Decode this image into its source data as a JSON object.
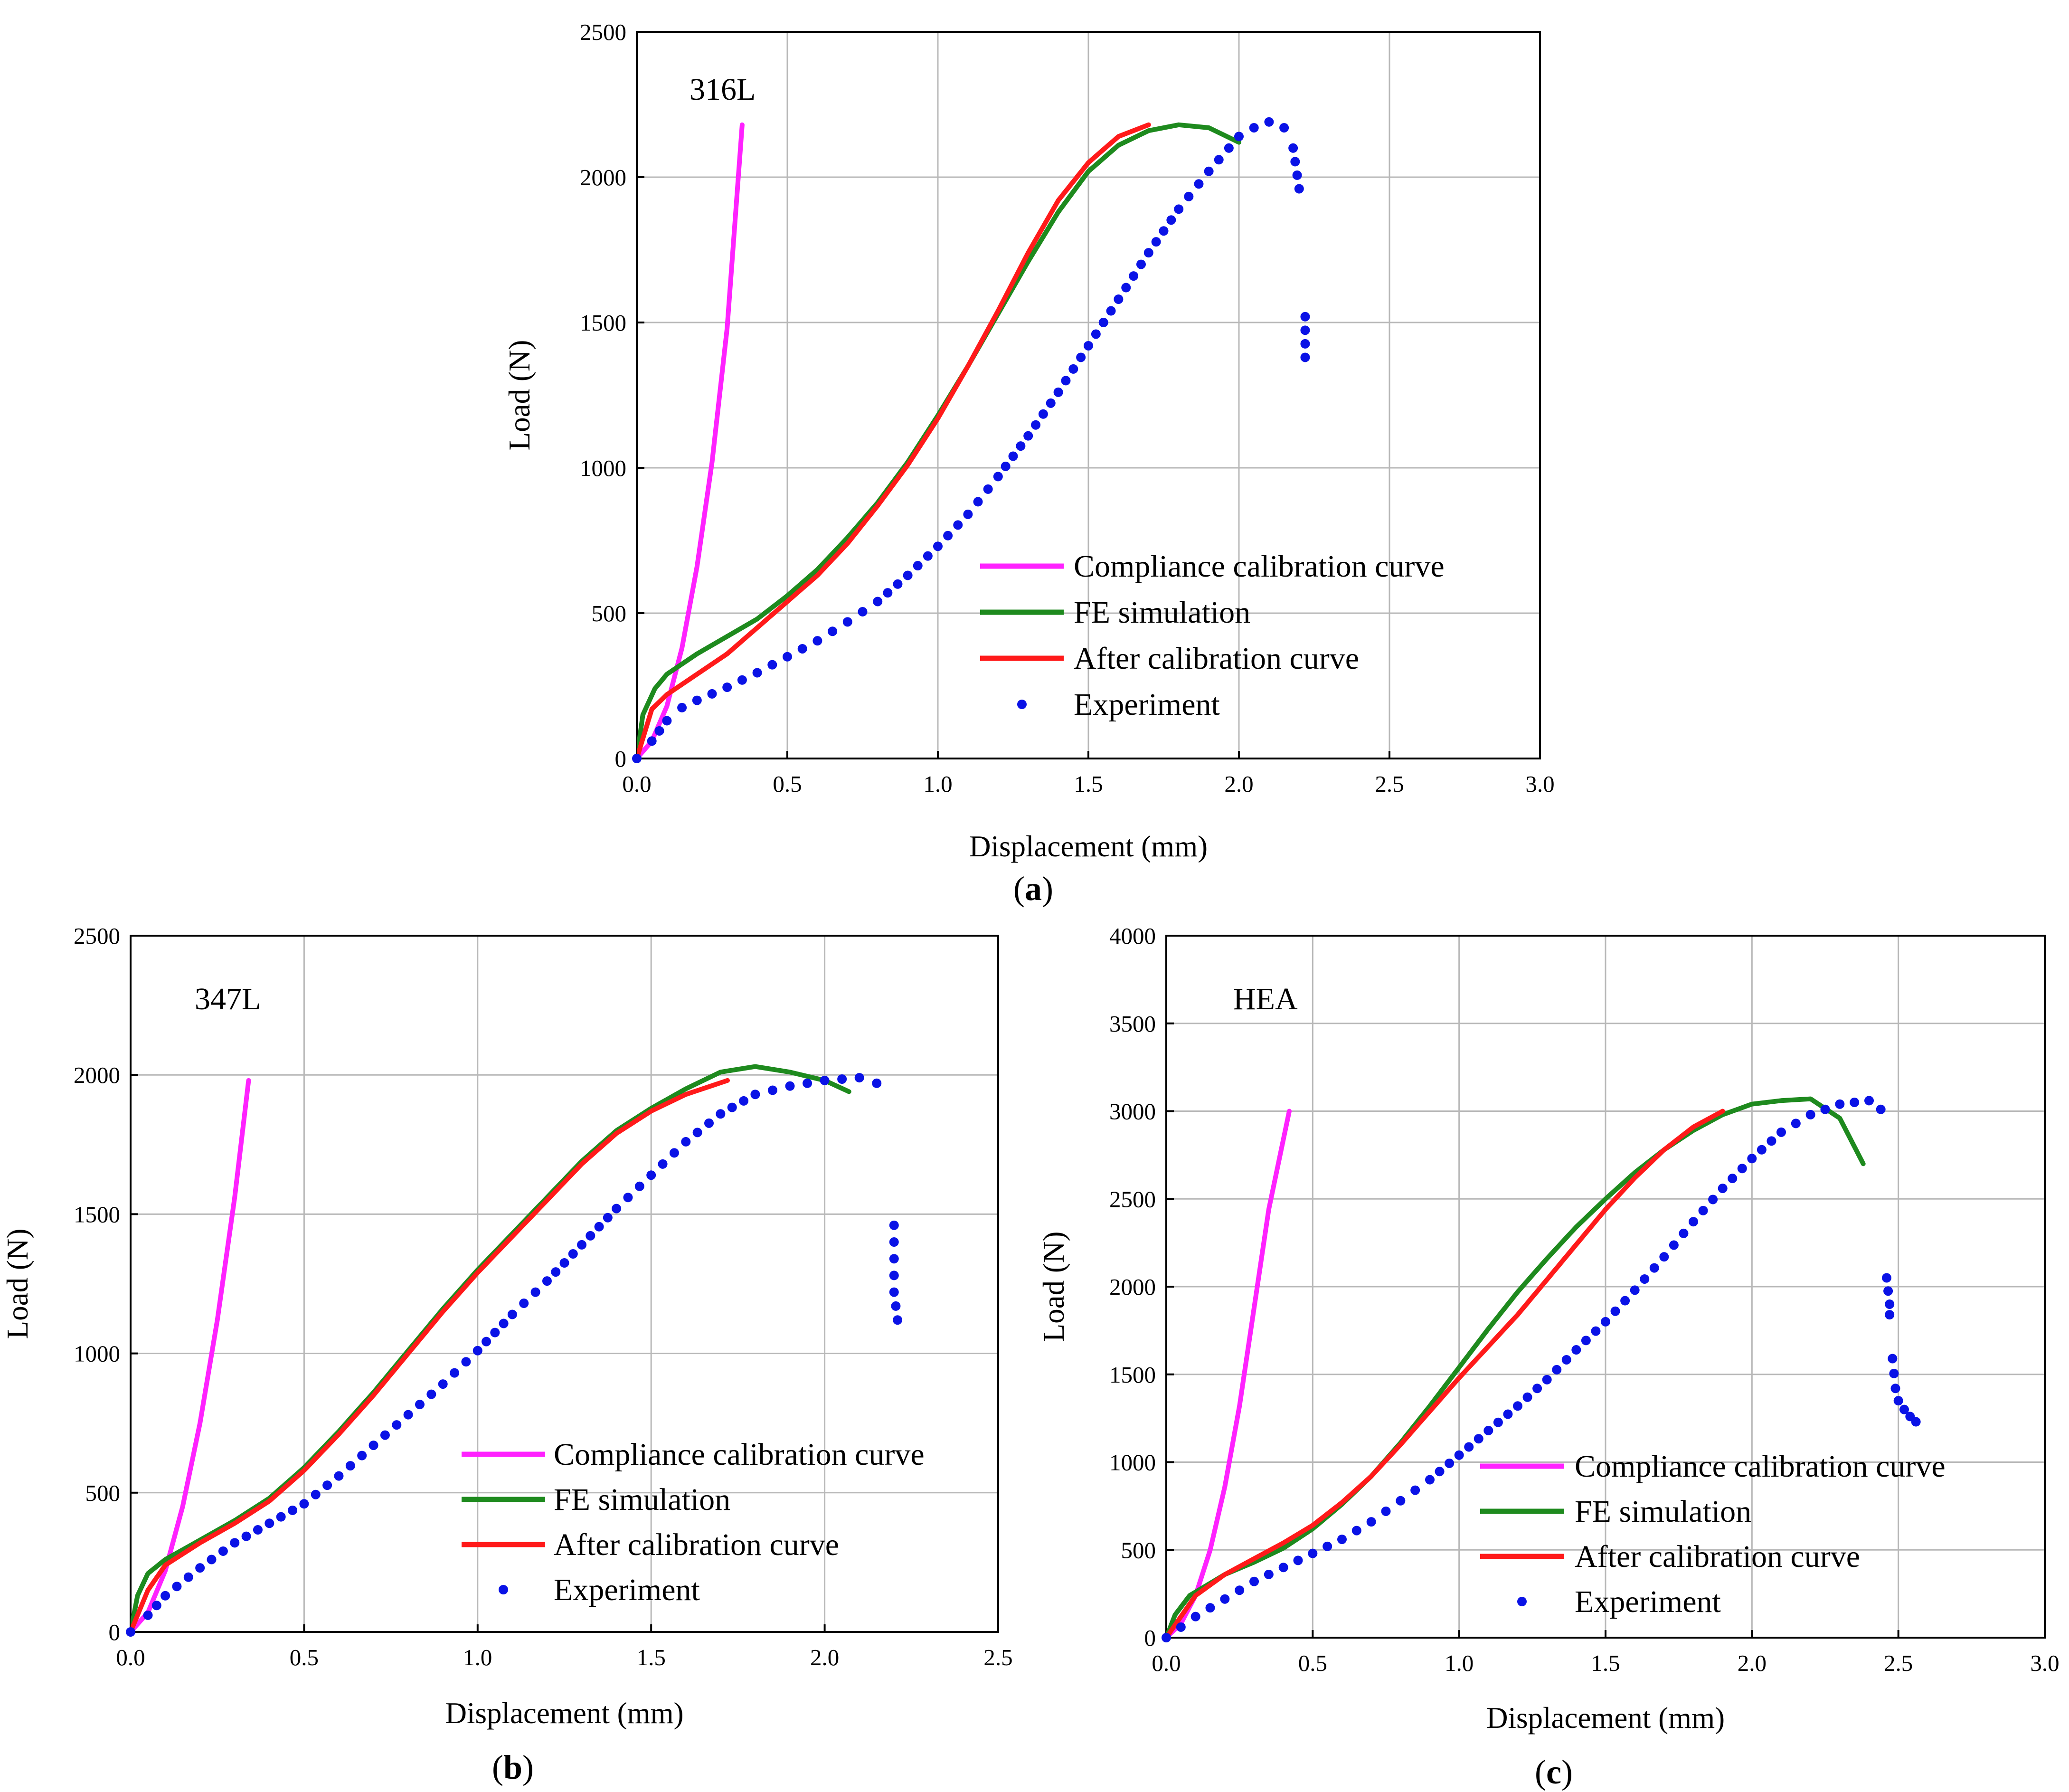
{
  "colors": {
    "compliance": "#ff22ff",
    "fe": "#1e8a1e",
    "after": "#ff1a1a",
    "experiment": "#0a12e6",
    "grid": "#b8b8b8",
    "frame": "#000000"
  },
  "legend_labels": {
    "compliance": "Compliance calibration curve",
    "fe": "FE simulation",
    "after": "After calibration curve",
    "experiment": "Experiment"
  },
  "chart_data": [
    {
      "id": "a",
      "type": "line",
      "caption_label": "a",
      "material": "316L",
      "xlabel": "Displacement (mm)",
      "ylabel": "Load (N)",
      "xlim": [
        0,
        3.0
      ],
      "ylim": [
        0,
        2500
      ],
      "xticks": [
        "0.0",
        "0.5",
        "1.0",
        "1.5",
        "2.0",
        "2.5",
        "3.0"
      ],
      "yticks": [
        "0",
        "500",
        "1000",
        "1500",
        "2000",
        "2500"
      ],
      "grid": true,
      "legend_position": "bottom-right",
      "series": {
        "compliance": [
          [
            0,
            0
          ],
          [
            0.05,
            60
          ],
          [
            0.1,
            180
          ],
          [
            0.15,
            380
          ],
          [
            0.2,
            660
          ],
          [
            0.25,
            1020
          ],
          [
            0.3,
            1480
          ],
          [
            0.35,
            2180
          ]
        ],
        "fe": [
          [
            0,
            0
          ],
          [
            0.02,
            150
          ],
          [
            0.06,
            240
          ],
          [
            0.1,
            290
          ],
          [
            0.2,
            360
          ],
          [
            0.3,
            420
          ],
          [
            0.4,
            480
          ],
          [
            0.5,
            560
          ],
          [
            0.6,
            650
          ],
          [
            0.7,
            760
          ],
          [
            0.8,
            880
          ],
          [
            0.9,
            1020
          ],
          [
            1.0,
            1180
          ],
          [
            1.1,
            1350
          ],
          [
            1.2,
            1530
          ],
          [
            1.3,
            1710
          ],
          [
            1.4,
            1880
          ],
          [
            1.5,
            2020
          ],
          [
            1.6,
            2110
          ],
          [
            1.7,
            2160
          ],
          [
            1.8,
            2180
          ],
          [
            1.9,
            2170
          ],
          [
            2.0,
            2120
          ]
        ],
        "after": [
          [
            0,
            0
          ],
          [
            0.05,
            170
          ],
          [
            0.1,
            220
          ],
          [
            0.2,
            290
          ],
          [
            0.3,
            360
          ],
          [
            0.4,
            450
          ],
          [
            0.5,
            540
          ],
          [
            0.6,
            630
          ],
          [
            0.7,
            740
          ],
          [
            0.8,
            870
          ],
          [
            0.9,
            1010
          ],
          [
            1.0,
            1170
          ],
          [
            1.1,
            1350
          ],
          [
            1.2,
            1540
          ],
          [
            1.3,
            1740
          ],
          [
            1.4,
            1920
          ],
          [
            1.5,
            2050
          ],
          [
            1.6,
            2140
          ],
          [
            1.7,
            2180
          ]
        ],
        "experiment": [
          [
            0,
            0
          ],
          [
            0.05,
            60
          ],
          [
            0.1,
            130
          ],
          [
            0.15,
            175
          ],
          [
            0.2,
            200
          ],
          [
            0.3,
            245
          ],
          [
            0.4,
            295
          ],
          [
            0.5,
            350
          ],
          [
            0.6,
            405
          ],
          [
            0.7,
            470
          ],
          [
            0.8,
            540
          ],
          [
            0.9,
            630
          ],
          [
            1.0,
            730
          ],
          [
            1.1,
            840
          ],
          [
            1.2,
            970
          ],
          [
            1.3,
            1110
          ],
          [
            1.4,
            1260
          ],
          [
            1.5,
            1420
          ],
          [
            1.6,
            1580
          ],
          [
            1.7,
            1740
          ],
          [
            1.8,
            1890
          ],
          [
            1.9,
            2020
          ],
          [
            2.0,
            2140
          ],
          [
            2.05,
            2170
          ],
          [
            2.1,
            2190
          ],
          [
            2.15,
            2170
          ],
          [
            2.18,
            2100
          ],
          [
            2.2,
            1960
          ],
          [
            2.22,
            1520
          ],
          [
            2.22,
            1380
          ]
        ]
      }
    },
    {
      "id": "b",
      "type": "line",
      "caption_label": "b",
      "material": "347L",
      "xlabel": "Displacement (mm)",
      "ylabel": "Load (N)",
      "xlim": [
        0,
        2.5
      ],
      "ylim": [
        0,
        2500
      ],
      "xticks": [
        "0.0",
        "0.5",
        "1.0",
        "1.5",
        "2.0",
        "2.5"
      ],
      "yticks": [
        "0",
        "500",
        "1000",
        "1500",
        "2000",
        "2500"
      ],
      "grid": true,
      "legend_position": "bottom-right",
      "series": {
        "compliance": [
          [
            0,
            0
          ],
          [
            0.05,
            70
          ],
          [
            0.1,
            220
          ],
          [
            0.15,
            450
          ],
          [
            0.2,
            750
          ],
          [
            0.25,
            1120
          ],
          [
            0.3,
            1560
          ],
          [
            0.34,
            1980
          ]
        ],
        "fe": [
          [
            0,
            0
          ],
          [
            0.02,
            130
          ],
          [
            0.05,
            210
          ],
          [
            0.1,
            260
          ],
          [
            0.2,
            330
          ],
          [
            0.3,
            400
          ],
          [
            0.4,
            480
          ],
          [
            0.5,
            590
          ],
          [
            0.6,
            720
          ],
          [
            0.7,
            860
          ],
          [
            0.8,
            1010
          ],
          [
            0.9,
            1160
          ],
          [
            1.0,
            1300
          ],
          [
            1.1,
            1430
          ],
          [
            1.2,
            1560
          ],
          [
            1.3,
            1690
          ],
          [
            1.4,
            1800
          ],
          [
            1.5,
            1880
          ],
          [
            1.6,
            1950
          ],
          [
            1.7,
            2010
          ],
          [
            1.8,
            2030
          ],
          [
            1.9,
            2010
          ],
          [
            2.0,
            1980
          ],
          [
            2.07,
            1940
          ]
        ],
        "after": [
          [
            0,
            0
          ],
          [
            0.05,
            150
          ],
          [
            0.1,
            240
          ],
          [
            0.2,
            320
          ],
          [
            0.3,
            390
          ],
          [
            0.4,
            470
          ],
          [
            0.5,
            580
          ],
          [
            0.6,
            710
          ],
          [
            0.7,
            850
          ],
          [
            0.8,
            1000
          ],
          [
            0.9,
            1150
          ],
          [
            1.0,
            1290
          ],
          [
            1.1,
            1420
          ],
          [
            1.2,
            1550
          ],
          [
            1.3,
            1680
          ],
          [
            1.4,
            1790
          ],
          [
            1.5,
            1870
          ],
          [
            1.6,
            1930
          ],
          [
            1.72,
            1980
          ]
        ],
        "experiment": [
          [
            0,
            0
          ],
          [
            0.05,
            60
          ],
          [
            0.1,
            130
          ],
          [
            0.2,
            230
          ],
          [
            0.3,
            320
          ],
          [
            0.4,
            390
          ],
          [
            0.5,
            460
          ],
          [
            0.6,
            560
          ],
          [
            0.7,
            670
          ],
          [
            0.8,
            780
          ],
          [
            0.9,
            890
          ],
          [
            1.0,
            1010
          ],
          [
            1.1,
            1140
          ],
          [
            1.2,
            1260
          ],
          [
            1.3,
            1390
          ],
          [
            1.4,
            1520
          ],
          [
            1.5,
            1640
          ],
          [
            1.6,
            1760
          ],
          [
            1.7,
            1860
          ],
          [
            1.8,
            1930
          ],
          [
            1.9,
            1960
          ],
          [
            2.0,
            1980
          ],
          [
            2.1,
            1990
          ],
          [
            2.15,
            1970
          ],
          [
            2.2,
            1460
          ],
          [
            2.2,
            1340
          ],
          [
            2.2,
            1220
          ],
          [
            2.21,
            1120
          ]
        ]
      }
    },
    {
      "id": "c",
      "type": "line",
      "caption_label": "c",
      "material": "HEA",
      "xlabel": "Displacement (mm)",
      "ylabel": "Load (N)",
      "xlim": [
        0,
        3.0
      ],
      "ylim": [
        0,
        4000
      ],
      "xticks": [
        "0.0",
        "0.5",
        "1.0",
        "1.5",
        "2.0",
        "2.5",
        "3.0"
      ],
      "yticks": [
        "0",
        "500",
        "1000",
        "1500",
        "2000",
        "2500",
        "3000",
        "3500",
        "4000"
      ],
      "grid": true,
      "legend_position": "bottom-right",
      "series": {
        "compliance": [
          [
            0,
            0
          ],
          [
            0.05,
            80
          ],
          [
            0.1,
            240
          ],
          [
            0.15,
            500
          ],
          [
            0.2,
            860
          ],
          [
            0.25,
            1320
          ],
          [
            0.3,
            1880
          ],
          [
            0.35,
            2440
          ],
          [
            0.42,
            3000
          ]
        ],
        "fe": [
          [
            0,
            0
          ],
          [
            0.03,
            130
          ],
          [
            0.08,
            240
          ],
          [
            0.2,
            360
          ],
          [
            0.3,
            430
          ],
          [
            0.4,
            510
          ],
          [
            0.5,
            620
          ],
          [
            0.6,
            760
          ],
          [
            0.7,
            920
          ],
          [
            0.8,
            1110
          ],
          [
            0.9,
            1320
          ],
          [
            1.0,
            1540
          ],
          [
            1.1,
            1760
          ],
          [
            1.2,
            1970
          ],
          [
            1.3,
            2160
          ],
          [
            1.4,
            2340
          ],
          [
            1.5,
            2500
          ],
          [
            1.6,
            2650
          ],
          [
            1.7,
            2780
          ],
          [
            1.8,
            2890
          ],
          [
            1.9,
            2980
          ],
          [
            2.0,
            3040
          ],
          [
            2.1,
            3060
          ],
          [
            2.2,
            3070
          ],
          [
            2.3,
            2960
          ],
          [
            2.38,
            2700
          ]
        ],
        "after": [
          [
            0,
            0
          ],
          [
            0.05,
            120
          ],
          [
            0.1,
            240
          ],
          [
            0.2,
            360
          ],
          [
            0.3,
            450
          ],
          [
            0.4,
            540
          ],
          [
            0.5,
            640
          ],
          [
            0.6,
            770
          ],
          [
            0.7,
            920
          ],
          [
            0.8,
            1100
          ],
          [
            0.9,
            1290
          ],
          [
            1.0,
            1480
          ],
          [
            1.1,
            1660
          ],
          [
            1.2,
            1840
          ],
          [
            1.3,
            2040
          ],
          [
            1.4,
            2240
          ],
          [
            1.5,
            2440
          ],
          [
            1.6,
            2620
          ],
          [
            1.7,
            2780
          ],
          [
            1.8,
            2910
          ],
          [
            1.9,
            3000
          ]
        ],
        "experiment": [
          [
            0,
            0
          ],
          [
            0.05,
            60
          ],
          [
            0.1,
            120
          ],
          [
            0.2,
            220
          ],
          [
            0.3,
            320
          ],
          [
            0.4,
            400
          ],
          [
            0.5,
            480
          ],
          [
            0.6,
            560
          ],
          [
            0.7,
            660
          ],
          [
            0.8,
            780
          ],
          [
            0.9,
            900
          ],
          [
            1.0,
            1040
          ],
          [
            1.1,
            1180
          ],
          [
            1.2,
            1320
          ],
          [
            1.3,
            1470
          ],
          [
            1.4,
            1640
          ],
          [
            1.5,
            1800
          ],
          [
            1.6,
            1980
          ],
          [
            1.7,
            2170
          ],
          [
            1.8,
            2370
          ],
          [
            1.9,
            2560
          ],
          [
            2.0,
            2730
          ],
          [
            2.1,
            2880
          ],
          [
            2.2,
            2980
          ],
          [
            2.3,
            3040
          ],
          [
            2.4,
            3060
          ],
          [
            2.44,
            3010
          ],
          [
            2.46,
            2050
          ],
          [
            2.47,
            1900
          ],
          [
            2.47,
            1840
          ],
          [
            2.48,
            1590
          ],
          [
            2.49,
            1420
          ],
          [
            2.5,
            1350
          ],
          [
            2.52,
            1300
          ],
          [
            2.54,
            1260
          ],
          [
            2.56,
            1230
          ]
        ]
      }
    }
  ]
}
